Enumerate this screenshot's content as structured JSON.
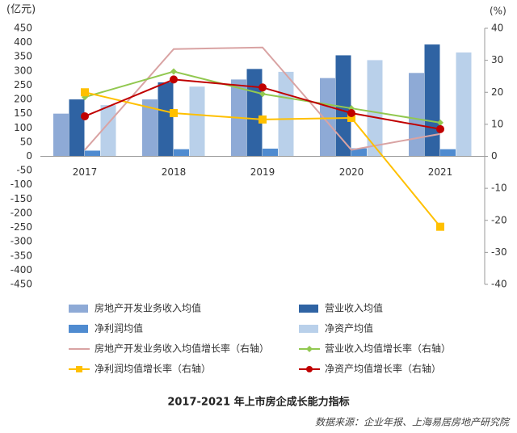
{
  "chart_data": {
    "type": "bar",
    "title": "2017-2021 年上市房企成长能力指标",
    "source": "数据来源：企业年报、上海易居房地产研究院",
    "y_label": "(亿元)",
    "y2_label": "(%)",
    "categories": [
      "2017",
      "2018",
      "2019",
      "2020",
      "2021"
    ],
    "ylim": [
      -450,
      450
    ],
    "yticks": [
      -450,
      -400,
      -350,
      -300,
      -250,
      -200,
      -150,
      -100,
      -50,
      0,
      50,
      100,
      150,
      200,
      250,
      300,
      350,
      400,
      450
    ],
    "y2lim": [
      -40,
      40
    ],
    "y2ticks": [
      -40,
      -30,
      -20,
      -10,
      0,
      10,
      20,
      30,
      40
    ],
    "series": [
      {
        "name": "房地产开发业务收入均值",
        "type": "bar",
        "color": "#8eaad6",
        "values": [
          150,
          200,
          270,
          275,
          293
        ]
      },
      {
        "name": "营业收入均值",
        "type": "bar",
        "color": "#2f63a3",
        "values": [
          200,
          260,
          307,
          355,
          393
        ]
      },
      {
        "name": "净利润均值",
        "type": "bar",
        "color": "#4f8bd0",
        "values": [
          20,
          25,
          27,
          28,
          25
        ]
      },
      {
        "name": "净资产均值",
        "type": "bar",
        "color": "#b9d0ea",
        "values": [
          180,
          245,
          297,
          338,
          365
        ]
      },
      {
        "name": "房地产开发业务收入均值增长率（右轴）",
        "type": "line",
        "axis": "y2",
        "marker": "none",
        "color": "#d9a3a3",
        "values": [
          2,
          33.5,
          34,
          2,
          7
        ]
      },
      {
        "name": "营业收入均值增长率（右轴）",
        "type": "line",
        "axis": "y2",
        "marker": "diamond",
        "color": "#92c850",
        "values": [
          18.5,
          26.5,
          19.5,
          15,
          10.5
        ]
      },
      {
        "name": "净利润均值增长率（右轴）",
        "type": "line",
        "axis": "y2",
        "marker": "square",
        "color": "#ffc000",
        "values": [
          20,
          13.5,
          11.5,
          12,
          -22
        ]
      },
      {
        "name": "净资产均值增长率（右轴）",
        "type": "line",
        "axis": "y2",
        "marker": "circle",
        "color": "#c00000",
        "values": [
          12.5,
          24,
          21.5,
          13.5,
          8.5
        ]
      }
    ]
  }
}
